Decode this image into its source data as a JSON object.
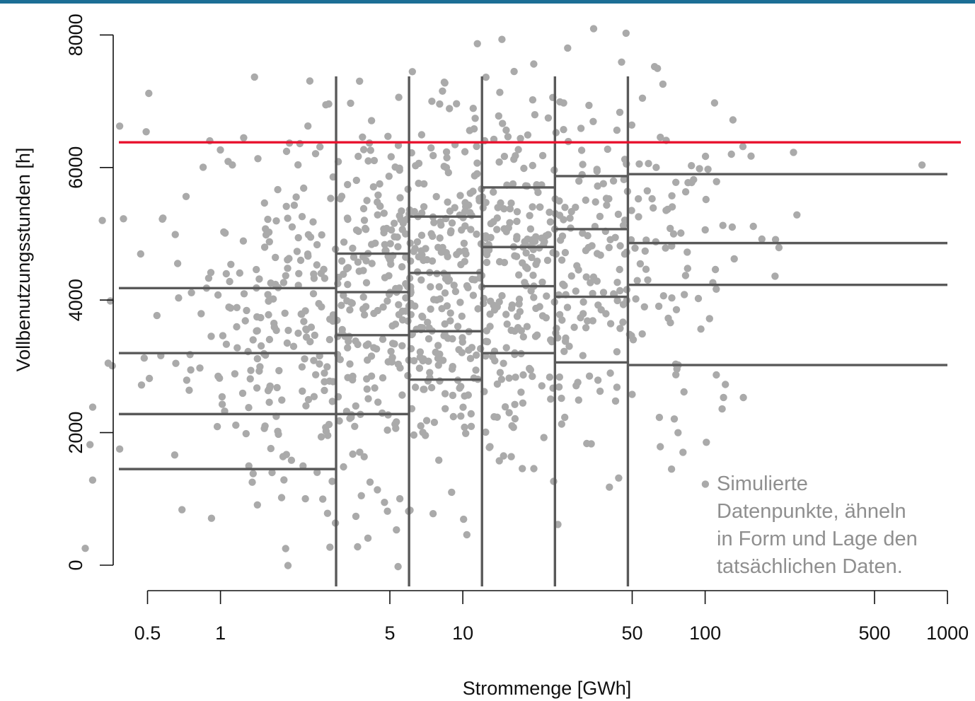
{
  "chart_data": {
    "type": "scatter",
    "title": "",
    "xlabel": "Strommenge [GWh]",
    "ylabel": "Vollbenutzungsstunden [h]",
    "x_scale": "log",
    "x_ticks": [
      {
        "value": 0.5,
        "label": "0.5"
      },
      {
        "value": 1,
        "label": "1"
      },
      {
        "value": 5,
        "label": "5"
      },
      {
        "value": 10,
        "label": "10"
      },
      {
        "value": 50,
        "label": "50"
      },
      {
        "value": 100,
        "label": "100"
      },
      {
        "value": 500,
        "label": "500"
      },
      {
        "value": 1000,
        "label": "1000"
      }
    ],
    "y_ticks": [
      {
        "value": 0,
        "label": "0"
      },
      {
        "value": 2000,
        "label": "2000"
      },
      {
        "value": 4000,
        "label": "4000"
      },
      {
        "value": 6000,
        "label": "6000"
      },
      {
        "value": 8000,
        "label": "8000"
      }
    ],
    "xlim": [
      0.25,
      1000
    ],
    "ylim": [
      -300,
      8500
    ],
    "colors": {
      "points": "#aaaaaa",
      "quantile_lines": "#595959",
      "reference_line": "#e8112d",
      "top_bar": "#1c6e95",
      "annotation": "#8f8f8f"
    },
    "reference_line": {
      "y": 6380
    },
    "bin_boundaries": [
      3,
      6,
      12,
      24,
      48
    ],
    "bins": [
      {
        "x_range": [
          0.25,
          3
        ],
        "quantile_values": [
          1450,
          2280,
          3200,
          4180
        ]
      },
      {
        "x_range": [
          3,
          6
        ],
        "quantile_values": [
          2280,
          3470,
          4120,
          4700
        ]
      },
      {
        "x_range": [
          6,
          12
        ],
        "quantile_values": [
          2800,
          3530,
          4410,
          5260
        ]
      },
      {
        "x_range": [
          12,
          24
        ],
        "quantile_values": [
          3200,
          4210,
          4800,
          5700
        ]
      },
      {
        "x_range": [
          24,
          48
        ],
        "quantile_values": [
          3060,
          4050,
          5070,
          5870
        ]
      },
      {
        "x_range": [
          48,
          1000
        ],
        "quantile_values": [
          3020,
          4230,
          4860,
          5900
        ]
      }
    ],
    "annotation_lines": [
      "Simulierte",
      "Datenpunkte, ähneln",
      "in Form und Lage den",
      "tatsächlichen Daten."
    ]
  }
}
